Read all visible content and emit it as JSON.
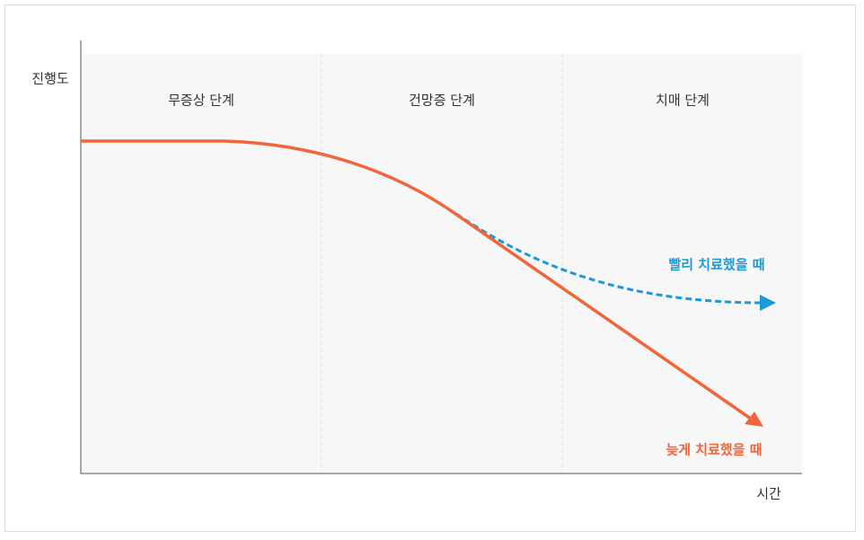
{
  "axes": {
    "y_label": "진행도",
    "x_label": "시간"
  },
  "stages": [
    "무증상 단계",
    "건망증 단계",
    "치매 단계"
  ],
  "curves": [
    {
      "label": "빨리 치료했을 때"
    },
    {
      "label": "늦게 치료했을 때"
    }
  ]
}
